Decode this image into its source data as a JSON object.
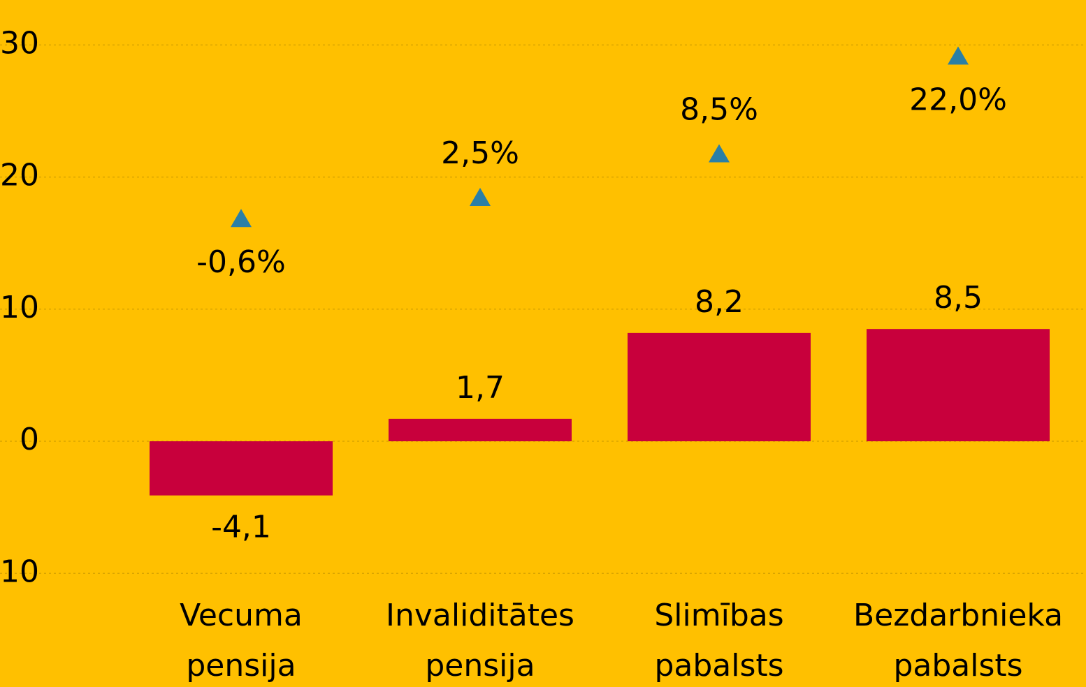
{
  "chart_data": {
    "type": "bar",
    "categories": [
      [
        "Vecuma",
        "pensija"
      ],
      [
        "Invaliditātes",
        "pensija"
      ],
      [
        "Slimības",
        "pabalsts"
      ],
      [
        "Bezdarbnieka",
        "pabalsts"
      ]
    ],
    "series": [
      {
        "type": "bar",
        "color": "#c8003c",
        "values": [
          -4.1,
          1.7,
          8.2,
          8.5
        ],
        "value_labels": [
          "-4,1",
          "1,7",
          "8,2",
          "8,5"
        ]
      },
      {
        "type": "marker",
        "color": "#2b7fa6",
        "values": [
          16.9,
          18.5,
          21.8,
          29.2
        ]
      }
    ],
    "annotations": [
      "-0,6%",
      "2,5%",
      "8,5%",
      "22,0%"
    ],
    "ylim": [
      -18.6,
      33.4
    ],
    "yticks": [
      30,
      20,
      10,
      0,
      {
        "value": -10,
        "label": "10"
      }
    ],
    "grid": true
  }
}
